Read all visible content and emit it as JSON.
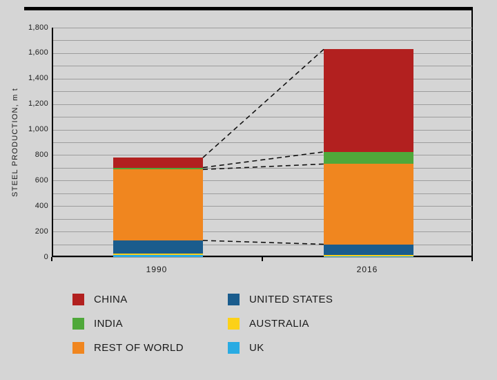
{
  "colors": {
    "background": "#d5d5d5",
    "axis": "#000000",
    "grid": "#9c9c9c",
    "connector": "#111111",
    "text": "#1a1a1a"
  },
  "chart_data": {
    "type": "bar",
    "stacked": true,
    "title": "",
    "xlabel": "",
    "ylabel": "STEEL PRODUCTION, m t",
    "categories": [
      "1990",
      "2016"
    ],
    "ylim": [
      0,
      1800
    ],
    "ytick_step": 200,
    "grid_step": 100,
    "grid": true,
    "ytick_labels": [
      "0",
      "200",
      "400",
      "600",
      "800",
      "1,000",
      "1,200",
      "1,400",
      "1,600",
      "1,800"
    ],
    "series": [
      {
        "name": "UK",
        "color": "#29abe3",
        "values": [
          18,
          8
        ]
      },
      {
        "name": "AUSTRALIA",
        "color": "#fcd118",
        "values": [
          8,
          6
        ]
      },
      {
        "name": "UNITED STATES",
        "color": "#1a5c8d",
        "values": [
          104,
          86
        ]
      },
      {
        "name": "REST OF WORLD",
        "color": "#f0861f",
        "values": [
          557,
          630
        ]
      },
      {
        "name": "INDIA",
        "color": "#4fa83a",
        "values": [
          15,
          95
        ]
      },
      {
        "name": "CHINA",
        "color": "#b2201f",
        "values": [
          78,
          805
        ]
      }
    ],
    "totals": [
      780,
      1630
    ],
    "connectors": [
      {
        "from": 780,
        "to": 1630
      },
      {
        "from": 702,
        "to": 825
      },
      {
        "from": 687,
        "to": 730
      },
      {
        "from": 130,
        "to": 100
      }
    ],
    "legend_position": "bottom",
    "legend": [
      {
        "label": "CHINA",
        "color": "#b2201f"
      },
      {
        "label": "UNITED STATES",
        "color": "#1a5c8d"
      },
      {
        "label": "INDIA",
        "color": "#4fa83a"
      },
      {
        "label": "AUSTRALIA",
        "color": "#fcd118"
      },
      {
        "label": "REST OF WORLD",
        "color": "#f0861f"
      },
      {
        "label": "UK",
        "color": "#29abe3"
      }
    ]
  }
}
